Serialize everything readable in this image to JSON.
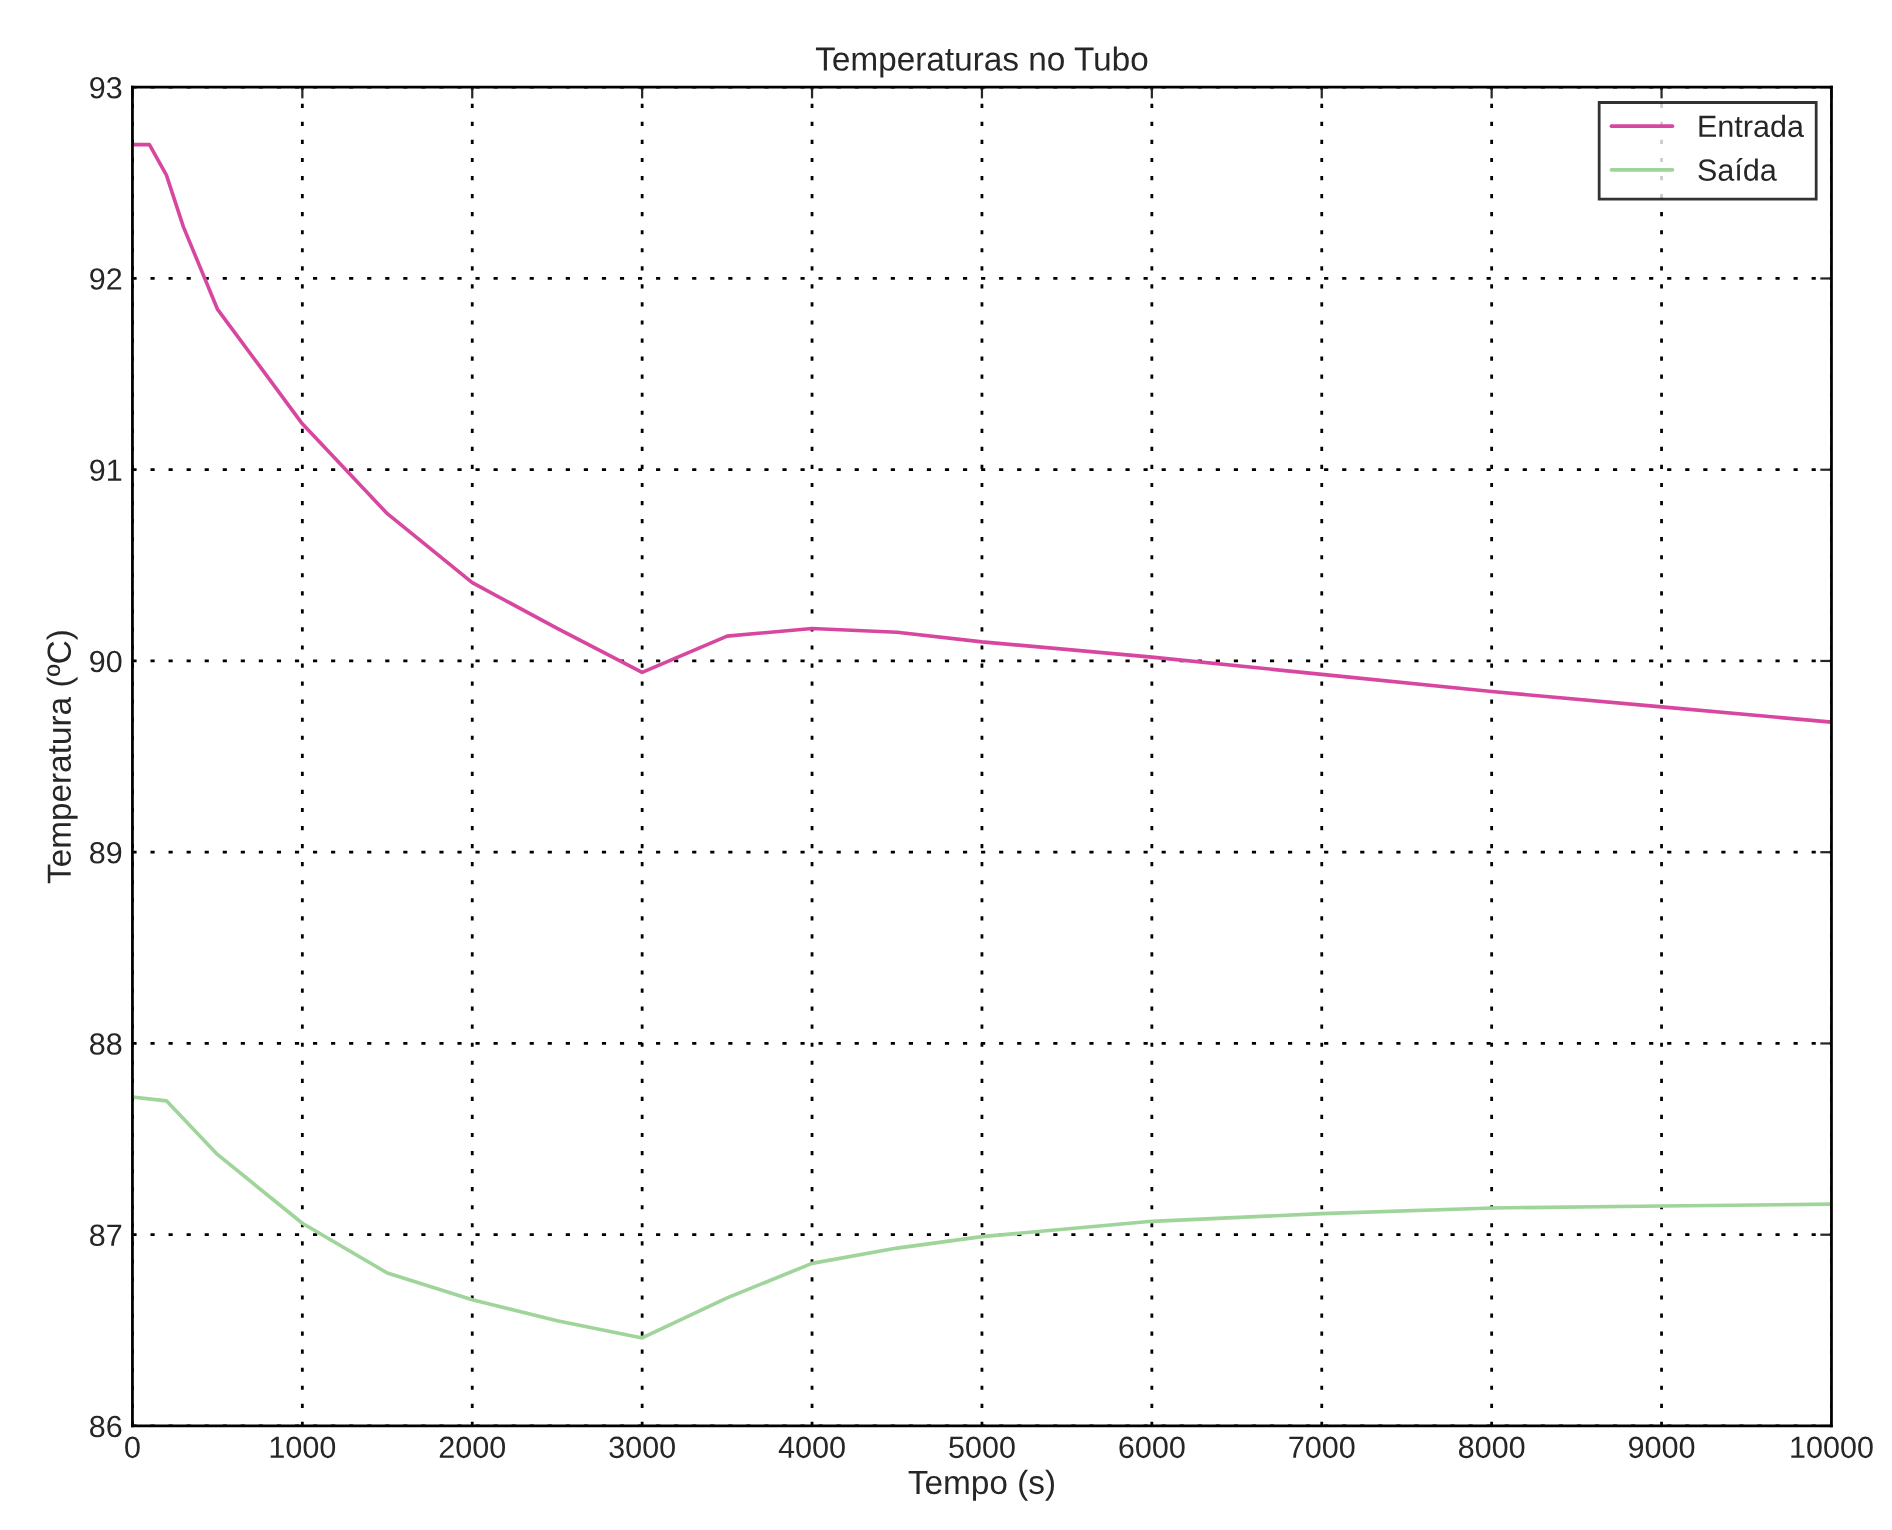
{
  "chart_data": {
    "type": "line",
    "title": "Temperaturas no Tubo",
    "xlabel": "Tempo (s)",
    "ylabel": "Temperatura (ºC)",
    "xlim": [
      0,
      10000
    ],
    "xticks": [
      0,
      1000,
      2000,
      3000,
      4000,
      5000,
      6000,
      7000,
      8000,
      9000,
      10000
    ],
    "ylim": [
      86,
      93
    ],
    "yticks": [
      86,
      87,
      88,
      89,
      90,
      91,
      92,
      93
    ],
    "grid": true,
    "legend": "top right",
    "line_style": "solid",
    "series": [
      {
        "name": "Entrada",
        "color": "#d8479f",
        "x": [
          0,
          100,
          200,
          300,
          500,
          750,
          1000,
          1500,
          2000,
          2500,
          3000,
          3500,
          4000,
          4500,
          5000,
          6000,
          7000,
          8000,
          9000,
          10000
        ],
        "values": [
          92.7,
          92.7,
          92.54,
          92.27,
          91.84,
          91.54,
          91.24,
          90.77,
          90.41,
          90.17,
          89.94,
          90.13,
          90.17,
          90.15,
          90.1,
          90.02,
          89.93,
          89.84,
          89.76,
          89.68
        ]
      },
      {
        "name": "Saída",
        "color": "#9fd49a",
        "x": [
          0,
          200,
          500,
          1000,
          1500,
          2000,
          2500,
          3000,
          3500,
          4000,
          4500,
          5000,
          6000,
          7000,
          8000,
          9000,
          10000
        ],
        "values": [
          87.72,
          87.7,
          87.42,
          87.06,
          86.8,
          86.66,
          86.55,
          86.46,
          86.67,
          86.85,
          86.93,
          86.99,
          87.07,
          87.11,
          87.14,
          87.15,
          87.16
        ]
      }
    ]
  }
}
